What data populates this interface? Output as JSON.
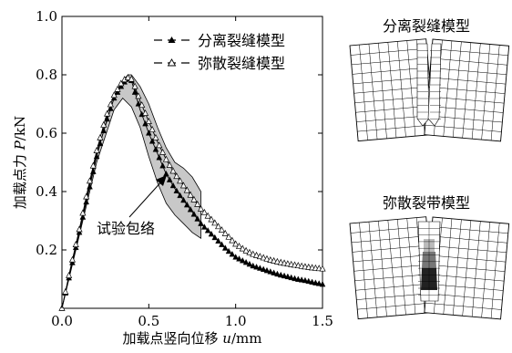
{
  "chart_data": {
    "type": "line",
    "xlabel": "加载点竖向位移 u/mm",
    "xlabel_parts": [
      "加载点竖向位移 ",
      "u",
      "/mm"
    ],
    "ylabel": "加载点力 P/kN",
    "ylabel_parts": [
      "加载点力 ",
      "P",
      "/kN"
    ],
    "xlim": [
      0,
      1.5
    ],
    "ylim": [
      0,
      1.0
    ],
    "xticks": [
      "0.0",
      "0.5",
      "1.0",
      "1.5"
    ],
    "yticks": [
      "0.2",
      "0.4",
      "0.6",
      "0.8",
      "1.0"
    ],
    "legend_position": "top-right",
    "series": [
      {
        "name": "分离裂缝模型",
        "marker": "filled-triangle",
        "x": [
          0,
          0.05,
          0.1,
          0.15,
          0.2,
          0.25,
          0.3,
          0.35,
          0.38,
          0.4,
          0.42,
          0.45,
          0.5,
          0.55,
          0.6,
          0.65,
          0.7,
          0.75,
          0.8,
          0.85,
          0.9,
          0.95,
          1.0,
          1.05,
          1.1,
          1.15,
          1.2,
          1.25,
          1.3,
          1.35,
          1.4,
          1.45,
          1.5
        ],
        "y": [
          0,
          0.13,
          0.26,
          0.39,
          0.52,
          0.63,
          0.72,
          0.77,
          0.785,
          0.78,
          0.74,
          0.68,
          0.6,
          0.53,
          0.46,
          0.41,
          0.37,
          0.33,
          0.29,
          0.26,
          0.23,
          0.2,
          0.175,
          0.16,
          0.145,
          0.135,
          0.125,
          0.115,
          0.108,
          0.1,
          0.095,
          0.088,
          0.082
        ]
      },
      {
        "name": "弥散裂缝模型",
        "marker": "open-triangle",
        "x": [
          0,
          0.05,
          0.1,
          0.15,
          0.2,
          0.25,
          0.3,
          0.35,
          0.38,
          0.4,
          0.42,
          0.45,
          0.5,
          0.55,
          0.6,
          0.65,
          0.7,
          0.75,
          0.8,
          0.85,
          0.9,
          0.95,
          1.0,
          1.05,
          1.1,
          1.15,
          1.2,
          1.25,
          1.3,
          1.35,
          1.4,
          1.45,
          1.5
        ],
        "y": [
          0,
          0.14,
          0.27,
          0.41,
          0.54,
          0.65,
          0.73,
          0.78,
          0.79,
          0.785,
          0.76,
          0.71,
          0.64,
          0.57,
          0.51,
          0.46,
          0.42,
          0.38,
          0.34,
          0.31,
          0.28,
          0.25,
          0.22,
          0.2,
          0.185,
          0.175,
          0.165,
          0.158,
          0.152,
          0.147,
          0.142,
          0.138,
          0.135
        ]
      }
    ],
    "envelope": {
      "label": "试验包络",
      "upper": {
        "x": [
          0,
          0.1,
          0.2,
          0.3,
          0.35,
          0.38,
          0.4,
          0.45,
          0.5,
          0.55,
          0.6,
          0.65,
          0.7,
          0.75,
          0.8
        ],
        "y": [
          0,
          0.27,
          0.53,
          0.72,
          0.78,
          0.8,
          0.8,
          0.76,
          0.7,
          0.62,
          0.55,
          0.5,
          0.48,
          0.45,
          0.4
        ]
      },
      "lower": {
        "x": [
          0,
          0.1,
          0.2,
          0.3,
          0.35,
          0.4,
          0.45,
          0.5,
          0.55,
          0.6,
          0.65,
          0.7,
          0.75,
          0.8
        ],
        "y": [
          0,
          0.25,
          0.5,
          0.68,
          0.72,
          0.69,
          0.62,
          0.52,
          0.43,
          0.36,
          0.32,
          0.29,
          0.26,
          0.24
        ]
      },
      "fill_color": "#c8c8c8"
    }
  },
  "panels": {
    "top_title": "分离裂缝模型",
    "bottom_title": "弥散裂带模型"
  },
  "colors": {
    "band_dark": "#222222",
    "band_mid": "#777777",
    "band_light": "#bbbbbb"
  }
}
